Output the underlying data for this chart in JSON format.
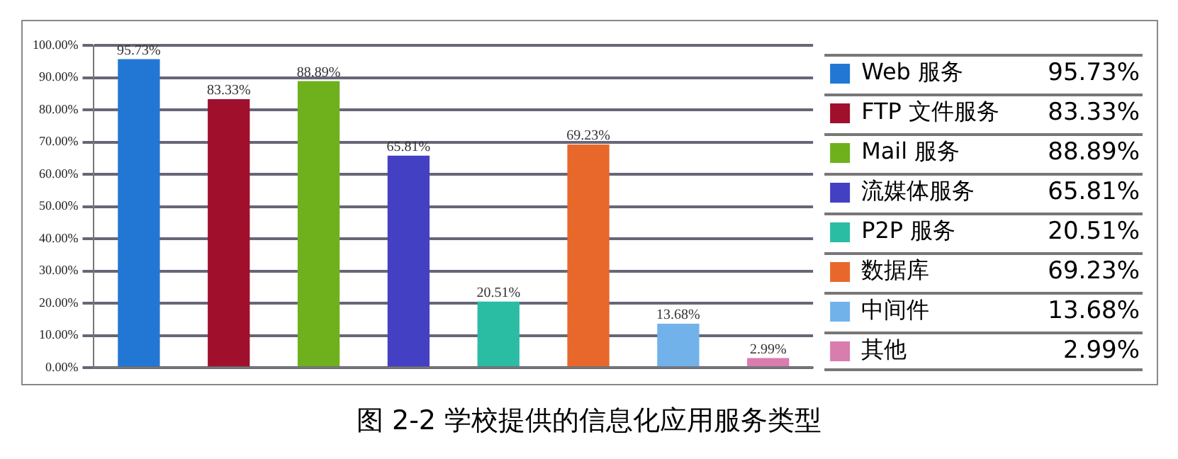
{
  "chart_data": {
    "type": "bar",
    "title": "图 2-2 学校提供的信息化应用服务类型",
    "categories": [
      null,
      null,
      null,
      null,
      null,
      null,
      null,
      null
    ],
    "series": [
      {
        "name": "Web 服务",
        "color": "#2277d4",
        "values": [
          95.73,
          null,
          null,
          null,
          null,
          null,
          null,
          null
        ],
        "value_labels": [
          "95.73%",
          null,
          null,
          null,
          null,
          null,
          null,
          null
        ]
      },
      {
        "name": "FTP 文件服务",
        "color": "#a0102c",
        "values": [
          null,
          83.33,
          null,
          null,
          null,
          null,
          null,
          null
        ],
        "value_labels": [
          null,
          "83.33%",
          null,
          null,
          null,
          null,
          null,
          null
        ]
      },
      {
        "name": "Mail 服务",
        "color": "#6eb11c",
        "values": [
          null,
          null,
          88.89,
          null,
          null,
          null,
          null,
          null
        ],
        "value_labels": [
          null,
          null,
          "88.89%",
          null,
          null,
          null,
          null,
          null
        ]
      },
      {
        "name": "流媒体服务",
        "color": "#4340c4",
        "values": [
          null,
          null,
          null,
          65.81,
          null,
          null,
          null,
          null
        ],
        "value_labels": [
          null,
          null,
          null,
          "65.81%",
          null,
          null,
          null,
          null
        ]
      },
      {
        "name": "P2P 服务",
        "color": "#2bbca4",
        "values": [
          null,
          null,
          null,
          null,
          20.51,
          null,
          null,
          null
        ],
        "value_labels": [
          null,
          null,
          null,
          null,
          "20.51%",
          null,
          null,
          null
        ]
      },
      {
        "name": "数据库",
        "color": "#e8682c",
        "values": [
          null,
          null,
          null,
          null,
          null,
          69.23,
          null,
          null
        ],
        "value_labels": [
          null,
          null,
          null,
          null,
          null,
          "69.23%",
          null,
          null
        ]
      },
      {
        "name": "中间件",
        "color": "#72b2ea",
        "values": [
          null,
          null,
          null,
          null,
          null,
          null,
          13.68,
          null
        ],
        "value_labels": [
          null,
          null,
          null,
          null,
          null,
          null,
          "13.68%",
          null
        ]
      },
      {
        "name": "其他",
        "color": "#d97cae",
        "values": [
          null,
          null,
          null,
          null,
          null,
          null,
          null,
          2.99
        ],
        "value_labels": [
          null,
          null,
          null,
          null,
          null,
          null,
          null,
          "2.99%"
        ]
      }
    ],
    "ylim": [
      0,
      100
    ],
    "yticks": [
      {
        "value": 0,
        "label": "0.00%"
      },
      {
        "value": 10,
        "label": "10.00%"
      },
      {
        "value": 20,
        "label": "20.00%"
      },
      {
        "value": 30,
        "label": "30.00%"
      },
      {
        "value": 40,
        "label": "40.00%"
      },
      {
        "value": 50,
        "label": "50.00%"
      },
      {
        "value": 60,
        "label": "60.00%"
      },
      {
        "value": 70,
        "label": "70.00%"
      },
      {
        "value": 80,
        "label": "80.00%"
      },
      {
        "value": 90,
        "label": "90.00%"
      },
      {
        "value": 100,
        "label": "100.00%"
      }
    ],
    "grid": "y",
    "legend": "right",
    "tick_labels": "y"
  }
}
